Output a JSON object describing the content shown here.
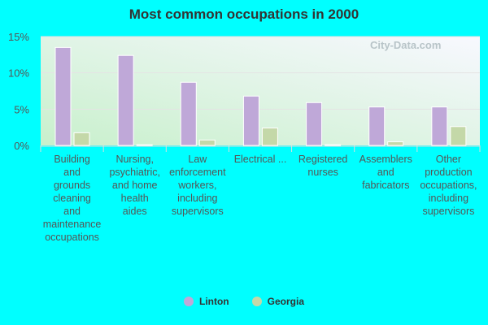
{
  "chart_data": {
    "type": "bar",
    "title": "Most common occupations in 2000",
    "categories": [
      "Building and grounds cleaning and maintenance occupations",
      "Nursing, psychiatric, and home health aides",
      "Law enforcement workers, including supervisors",
      "Electrical ...",
      "Registered nurses",
      "Assemblers and fabricators",
      "Other production occupations, including supervisors"
    ],
    "category_lines": [
      [
        "Building",
        "and",
        "grounds",
        "cleaning",
        "and",
        "maintenance",
        "occupations"
      ],
      [
        "Nursing,",
        "psychiatric,",
        "and home",
        "health",
        "aides"
      ],
      [
        "Law",
        "enforcement",
        "workers,",
        "including",
        "supervisors"
      ],
      [
        "Electrical ..."
      ],
      [
        "Registered",
        "nurses"
      ],
      [
        "Assemblers",
        "and",
        "fabricators"
      ],
      [
        "Other",
        "production",
        "occupations,",
        "including",
        "supervisors"
      ]
    ],
    "series": [
      {
        "name": "Linton",
        "color": "#bfa8d8",
        "values": [
          13.5,
          12.4,
          8.7,
          6.8,
          5.9,
          5.3,
          5.3
        ]
      },
      {
        "name": "Georgia",
        "color": "#c4d8a8",
        "values": [
          1.75,
          0.1,
          0.75,
          2.4,
          0.1,
          0.5,
          2.6
        ]
      }
    ],
    "yticks": [
      "0%",
      "5%",
      "10%",
      "15%"
    ],
    "ylim": [
      0,
      15
    ],
    "grid": true,
    "legend": "bottom"
  },
  "watermark": "City-Data.com"
}
